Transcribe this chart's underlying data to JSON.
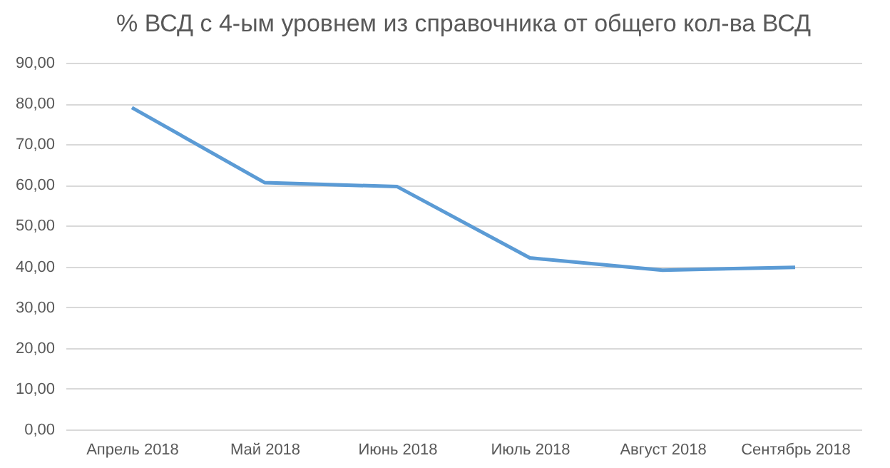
{
  "chart_data": {
    "type": "line",
    "title": "% ВСД с 4-ым уровнем из справочника от общего кол-ва ВСД",
    "categories": [
      "Апрель 2018",
      "Май 2018",
      "Июнь 2018",
      "Июль 2018",
      "Август 2018",
      "Сентябрь 2018"
    ],
    "series": [
      {
        "color": "#5b9bd5",
        "values": [
          79,
          60.6,
          59.6,
          42.1,
          39.1,
          39.8
        ]
      }
    ],
    "ylim": [
      0,
      90
    ],
    "yticks": [
      {
        "value": 0,
        "label": "0,00"
      },
      {
        "value": 10,
        "label": "10,00"
      },
      {
        "value": 20,
        "label": "20,00"
      },
      {
        "value": 30,
        "label": "30,00"
      },
      {
        "value": 40,
        "label": "40,00"
      },
      {
        "value": 50,
        "label": "50,00"
      },
      {
        "value": 60,
        "label": "60,00"
      },
      {
        "value": 70,
        "label": "70,00"
      },
      {
        "value": 80,
        "label": "80,00"
      },
      {
        "value": 90,
        "label": "90,00"
      }
    ],
    "grid": "y",
    "marker": "none",
    "line_style": "solid"
  }
}
